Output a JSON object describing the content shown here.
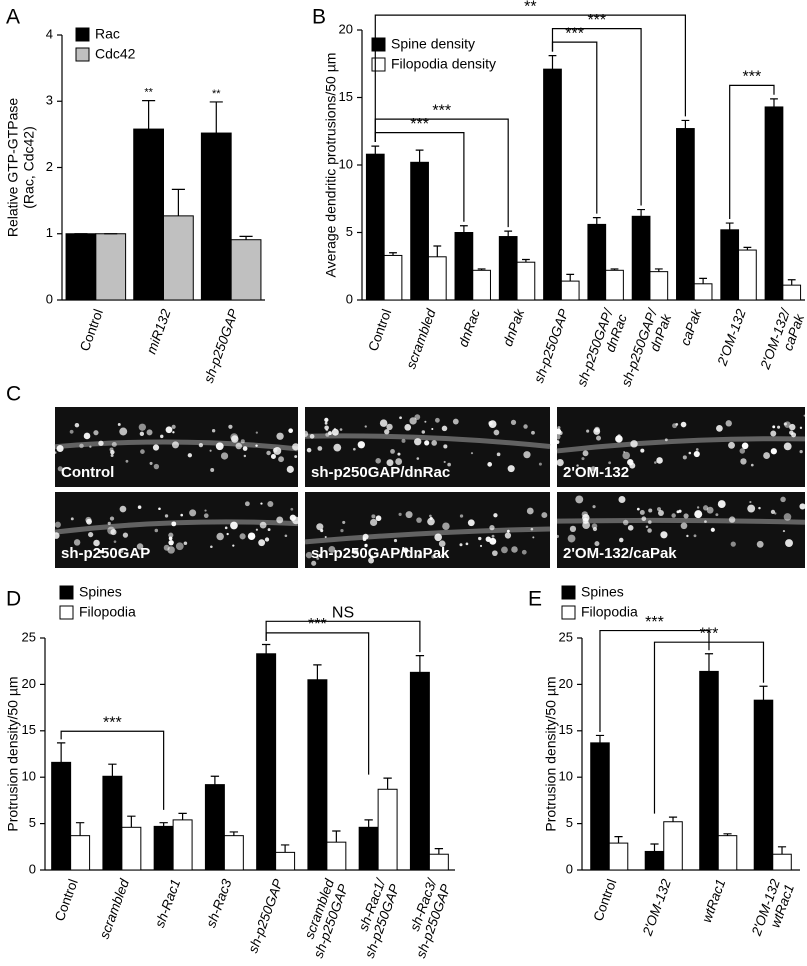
{
  "chart_data": [
    {
      "type": "bar",
      "label": "A",
      "ylabel": [
        "Relative GTP-GTPase",
        "(Rac, Cdc42)"
      ],
      "categories": [
        [
          "Control"
        ],
        [
          "miR132"
        ],
        [
          "sh-p250GAP"
        ]
      ],
      "series": [
        {
          "name": "Rac",
          "color": "#000000",
          "values": [
            1.0,
            2.58,
            2.52
          ],
          "errors": [
            0,
            0.43,
            0.47
          ]
        },
        {
          "name": "Cdc42",
          "color": "#c0c0c0",
          "values": [
            1.0,
            1.27,
            0.91
          ],
          "errors": [
            0,
            0.4,
            0.05
          ]
        }
      ],
      "annotations": [
        {
          "category": 1,
          "series": 0,
          "text": "**"
        },
        {
          "category": 2,
          "series": 0,
          "text": "**"
        }
      ],
      "ylim": [
        0,
        4
      ],
      "yticks": [
        0,
        1,
        2,
        3,
        4
      ]
    },
    {
      "type": "bar",
      "label": "B",
      "ylabel": [
        "Average dendritic protrusions/50 µm"
      ],
      "categories": [
        [
          "Control"
        ],
        [
          "scrambled"
        ],
        [
          "dnRac"
        ],
        [
          "dnPak"
        ],
        [
          "sh-p250GAP"
        ],
        [
          "sh-p250GAP/",
          "dnRac"
        ],
        [
          "sh-p250GAP/",
          "dnPak"
        ],
        [
          "caPak"
        ],
        [
          "2'OM-132"
        ],
        [
          "2'OM-132/",
          "caPak"
        ]
      ],
      "series": [
        {
          "name": "Spine density",
          "color": "#000000",
          "values": [
            10.8,
            10.2,
            5.0,
            4.7,
            17.1,
            5.6,
            6.2,
            12.7,
            5.2,
            14.3
          ],
          "errors": [
            0.6,
            0.9,
            0.5,
            0.4,
            1.0,
            0.5,
            0.5,
            0.6,
            0.5,
            0.6
          ]
        },
        {
          "name": "Filopodia density",
          "color": "#ffffff",
          "values": [
            3.3,
            3.2,
            2.2,
            2.8,
            1.4,
            2.2,
            2.1,
            1.2,
            3.7,
            1.1
          ],
          "errors": [
            0.2,
            0.8,
            0.1,
            0.2,
            0.5,
            0.1,
            0.2,
            0.4,
            0.2,
            0.4
          ]
        }
      ],
      "brackets": [
        {
          "from": 0,
          "to": 2,
          "label": "***"
        },
        {
          "from": 0,
          "to": 3,
          "label": "***"
        },
        {
          "from": 4,
          "to": 5,
          "label": "***"
        },
        {
          "from": 4,
          "to": 6,
          "label": "***"
        },
        {
          "from": 0,
          "to": 7,
          "label": "**"
        },
        {
          "from": 8,
          "to": 9,
          "label": "***"
        }
      ],
      "ylim": [
        0,
        20
      ],
      "yticks": [
        0,
        5,
        10,
        15,
        20
      ]
    },
    {
      "type": "bar",
      "label": "D",
      "ylabel": [
        "Protrusion density/50 µm"
      ],
      "categories": [
        [
          "Control"
        ],
        [
          "scrambled"
        ],
        [
          "sh-Rac1"
        ],
        [
          "sh-Rac3"
        ],
        [
          "sh-p250GAP"
        ],
        [
          "scrambled",
          "sh-p250GAP"
        ],
        [
          "sh-Rac1/",
          "sh-p250GAP"
        ],
        [
          "sh-Rac3/",
          "sh-p250GAP"
        ]
      ],
      "series": [
        {
          "name": "Spines",
          "color": "#000000",
          "values": [
            11.6,
            10.1,
            4.7,
            9.2,
            23.3,
            20.5,
            4.6,
            21.3
          ],
          "errors": [
            2.1,
            1.3,
            0.4,
            0.9,
            1.0,
            1.6,
            0.8,
            1.8
          ]
        },
        {
          "name": "Filopodia",
          "color": "#ffffff",
          "values": [
            3.7,
            4.6,
            5.4,
            3.7,
            1.9,
            3.0,
            8.7,
            1.7
          ],
          "errors": [
            1.4,
            1.2,
            0.7,
            0.4,
            0.8,
            1.2,
            1.2,
            0.6
          ]
        }
      ],
      "brackets": [
        {
          "from": 0,
          "to": 2,
          "label": "***"
        },
        {
          "from": 4,
          "to": 6,
          "label": "***"
        },
        {
          "from": 4,
          "to": 7,
          "label": "NS"
        }
      ],
      "ylim": [
        0,
        25
      ],
      "yticks": [
        0,
        5,
        10,
        15,
        20,
        25
      ]
    },
    {
      "type": "bar",
      "label": "E",
      "ylabel": [
        "Protrusion density/50 µm"
      ],
      "categories": [
        [
          "Control"
        ],
        [
          "2'OM-132"
        ],
        [
          "wtRac1"
        ],
        [
          "2'OM-132",
          "wtRac1"
        ]
      ],
      "series": [
        {
          "name": "Spines",
          "color": "#000000",
          "values": [
            13.7,
            2.0,
            21.4,
            18.3
          ],
          "errors": [
            0.8,
            0.8,
            1.9,
            1.5
          ]
        },
        {
          "name": "Filopodia",
          "color": "#ffffff",
          "values": [
            2.9,
            5.2,
            3.7,
            1.7
          ],
          "errors": [
            0.7,
            0.5,
            0.2,
            0.8
          ]
        }
      ],
      "brackets": [
        {
          "from": 1,
          "to": 3,
          "label": "***"
        },
        {
          "from": 0,
          "to": 2,
          "label": "***"
        }
      ],
      "ylim": [
        0,
        25
      ],
      "yticks": [
        0,
        5,
        10,
        15,
        20,
        25
      ]
    }
  ],
  "images": {
    "label": "C",
    "captions": [
      "Control",
      "sh-p250GAP/dnRac",
      "2'OM-132",
      "sh-p250GAP",
      "sh-p250GAP/dnPak",
      "2'OM-132/caPak"
    ]
  }
}
